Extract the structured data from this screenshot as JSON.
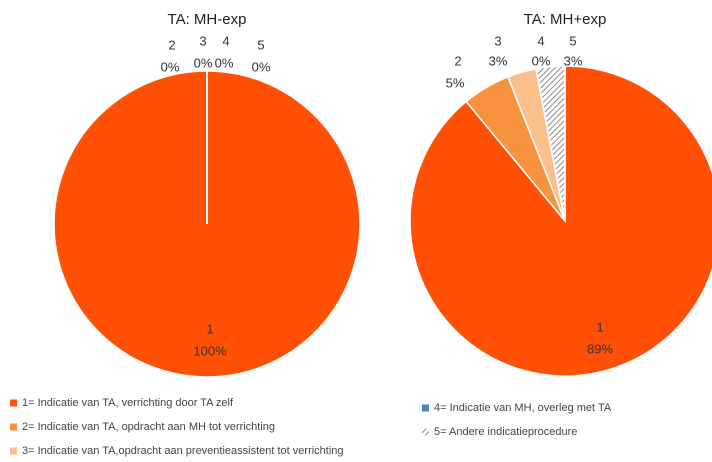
{
  "chart_data": [
    {
      "type": "pie",
      "title": "TA: MH-exp",
      "categories": [
        "1",
        "2",
        "3",
        "4",
        "5"
      ],
      "values": [
        100,
        0,
        0,
        0,
        0
      ],
      "value_labels": [
        "100%",
        "0%",
        "0%",
        "0%",
        "0%"
      ],
      "colors": [
        "#ff5005",
        "#f7923e",
        "#fbbf8c",
        "#4f81bd",
        "#a6a6a6"
      ]
    },
    {
      "type": "pie",
      "title": "TA: MH+exp",
      "categories": [
        "1",
        "2",
        "3",
        "4",
        "5"
      ],
      "values": [
        89,
        5,
        3,
        0,
        3
      ],
      "value_labels": [
        "89%",
        "5%",
        "3%",
        "0%",
        "3%"
      ],
      "colors": [
        "#ff5005",
        "#f7923e",
        "#fbbf8c",
        "#4f81bd",
        "#a6a6a6"
      ]
    }
  ],
  "legend": [
    {
      "label": "1= Indicatie van TA, verrichting door TA zelf",
      "color": "#ff5005",
      "pattern": "solid"
    },
    {
      "label": "2= Indicatie van TA, opdracht aan MH tot verrichting",
      "color": "#f7923e",
      "pattern": "solid"
    },
    {
      "label": "3= Indicatie van TA,opdracht aan preventieassistent tot verrichting",
      "color": "#fbbf8c",
      "pattern": "solid"
    },
    {
      "label": "4= Indicatie van MH, overleg met TA",
      "color": "#4f81bd",
      "pattern": "solid"
    },
    {
      "label": "5= Andere indicatieprocedure",
      "color": "#a6a6a6",
      "pattern": "hatch"
    }
  ]
}
